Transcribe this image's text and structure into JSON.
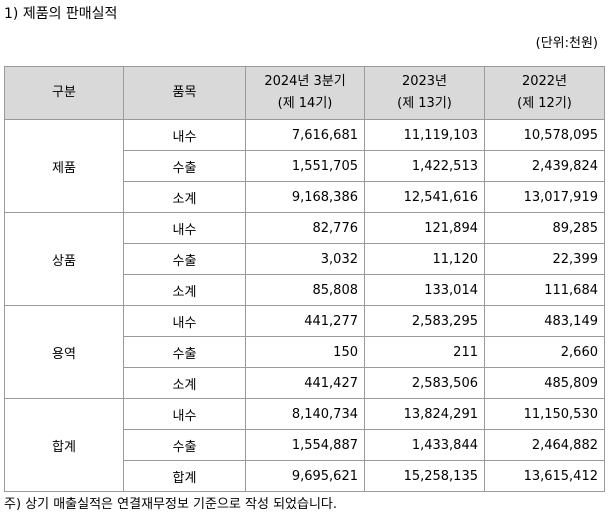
{
  "title": "1) 제품의 판매실적",
  "unit": "(단위:천원)",
  "table": {
    "headers": {
      "category": "구분",
      "item": "품목",
      "p1_year": "2024년 3분기",
      "p1_term": "(제 14기)",
      "p2_year": "2023년",
      "p2_term": "(제 13기)",
      "p3_year": "2022년",
      "p3_term": "(제 12기)"
    },
    "groups": [
      {
        "name": "제품",
        "rows": [
          {
            "item": "내수",
            "p1": "7,616,681",
            "p2": "11,119,103",
            "p3": "10,578,095"
          },
          {
            "item": "수출",
            "p1": "1,551,705",
            "p2": "1,422,513",
            "p3": "2,439,824"
          },
          {
            "item": "소계",
            "p1": "9,168,386",
            "p2": "12,541,616",
            "p3": "13,017,919"
          }
        ]
      },
      {
        "name": "상품",
        "rows": [
          {
            "item": "내수",
            "p1": "82,776",
            "p2": "121,894",
            "p3": "89,285"
          },
          {
            "item": "수출",
            "p1": "3,032",
            "p2": "11,120",
            "p3": "22,399"
          },
          {
            "item": "소계",
            "p1": "85,808",
            "p2": "133,014",
            "p3": "111,684"
          }
        ]
      },
      {
        "name": "용역",
        "rows": [
          {
            "item": "내수",
            "p1": "441,277",
            "p2": "2,583,295",
            "p3": "483,149"
          },
          {
            "item": "수출",
            "p1": "150",
            "p2": "211",
            "p3": "2,660"
          },
          {
            "item": "소계",
            "p1": "441,427",
            "p2": "2,583,506",
            "p3": "485,809"
          }
        ]
      },
      {
        "name": "합계",
        "rows": [
          {
            "item": "내수",
            "p1": "8,140,734",
            "p2": "13,824,291",
            "p3": "11,150,530"
          },
          {
            "item": "수출",
            "p1": "1,554,887",
            "p2": "1,433,844",
            "p3": "2,464,882"
          },
          {
            "item": "합계",
            "p1": "9,695,621",
            "p2": "15,258,135",
            "p3": "13,615,412"
          }
        ]
      }
    ]
  },
  "note": "주) 상기 매출실적은 연결재무정보 기준으로 작성 되었습니다.",
  "colors": {
    "header_bg": "#d9d9d9",
    "border": "#9a9a9a"
  }
}
